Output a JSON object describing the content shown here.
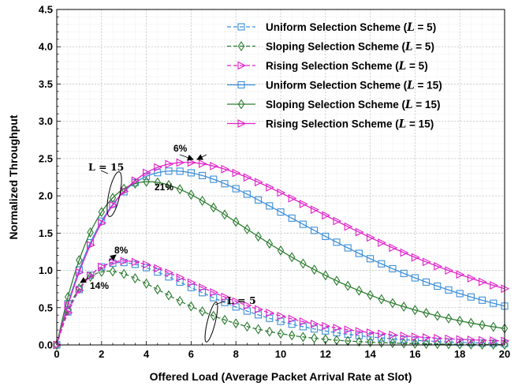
{
  "chart_data": {
    "type": "line",
    "xlabel": "Offered Load (Average Packet Arrival Rate at Slot)",
    "ylabel": "Normalized Throughput",
    "xlim": [
      0,
      20
    ],
    "ylim": [
      0,
      4.5
    ],
    "xticks": [
      0,
      2,
      4,
      6,
      8,
      10,
      12,
      14,
      16,
      18,
      20
    ],
    "yticks": [
      0.0,
      0.5,
      1.0,
      1.5,
      2.0,
      2.5,
      3.0,
      3.5,
      4.0,
      4.5
    ],
    "ytick_labels": [
      "0.0",
      "0.5",
      "1.0",
      "1.5",
      "2.0",
      "2.5",
      "3.0",
      "3.5",
      "4.0",
      "4.5"
    ],
    "grid": true,
    "legend_position": "top-right",
    "series": [
      {
        "name": "Uniform Selection Scheme (L = 5)",
        "legend_prefix": "Uniform Selection Scheme (",
        "legend_var": "L",
        "legend_suffix": " = 5)",
        "color": "#3d8fd9",
        "marker": "square",
        "dashed": true,
        "model": "uniform",
        "L": 5
      },
      {
        "name": "Sloping Selection Scheme (L = 5)",
        "legend_prefix": "Sloping Selection Scheme (",
        "legend_var": "L",
        "legend_suffix": " = 5)",
        "color": "#2e7d32",
        "marker": "diamond",
        "dashed": true,
        "model": "sloping",
        "L": 5
      },
      {
        "name": "Rising Selection Scheme (L = 5)",
        "legend_prefix": "Rising Selection Scheme (",
        "legend_var": "L",
        "legend_suffix": " = 5)",
        "color": "#e020c8",
        "marker": "triangle-right",
        "dashed": true,
        "model": "rising",
        "L": 5
      },
      {
        "name": "Uniform Selection Scheme (L = 15)",
        "legend_prefix": "Uniform Selection Scheme (",
        "legend_var": "L",
        "legend_suffix": " = 15)",
        "color": "#3d8fd9",
        "marker": "square",
        "dashed": false,
        "model": "uniform",
        "L": 15
      },
      {
        "name": "Sloping Selection Scheme (L = 15)",
        "legend_prefix": "Sloping Selection Scheme (",
        "legend_var": "L",
        "legend_suffix": " = 15)",
        "color": "#2e7d32",
        "marker": "diamond",
        "dashed": false,
        "model": "sloping",
        "L": 15
      },
      {
        "name": "Rising Selection Scheme (L = 15)",
        "legend_prefix": "Rising Selection Scheme (",
        "legend_var": "L",
        "legend_suffix": " = 15)",
        "color": "#e020c8",
        "marker": "triangle-right",
        "dashed": false,
        "model": "rising",
        "L": 15
      }
    ],
    "annotations": {
      "pct_6": "6%",
      "pct_21": "21%",
      "pct_8": "8%",
      "pct_14": "14%",
      "l15_text": "L = 15",
      "l5_text": "L = 5"
    }
  }
}
